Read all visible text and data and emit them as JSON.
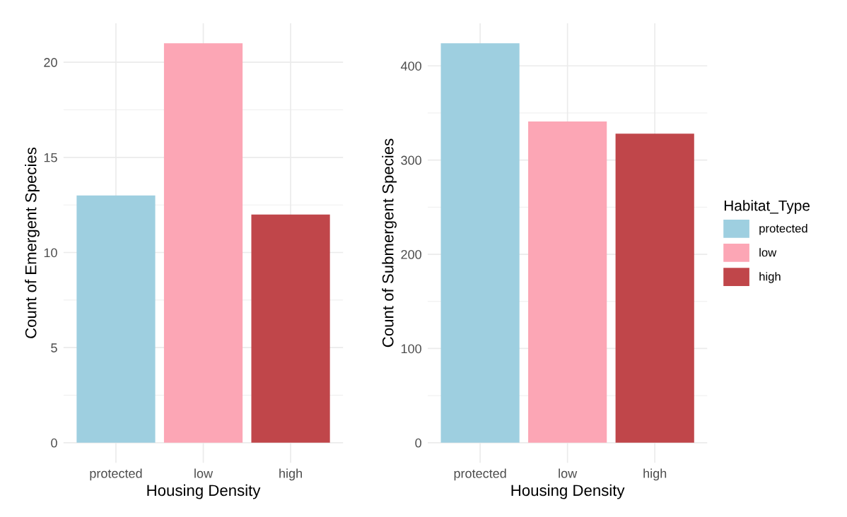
{
  "chart_data": [
    {
      "type": "bar",
      "xlabel": "Housing Density",
      "ylabel": "Count of Emergent Species",
      "categories": [
        "protected",
        "low",
        "high"
      ],
      "series": [
        {
          "color": "#9ecfe0",
          "values": [
            13,
            null,
            null
          ]
        },
        {
          "color": "#fca6b5",
          "values": [
            null,
            21,
            null
          ]
        },
        {
          "color": "#c0464a",
          "values": [
            null,
            null,
            12
          ]
        }
      ],
      "ylim": [
        -1.05,
        22.05
      ],
      "yticks": [
        0,
        5,
        10,
        15,
        20
      ],
      "grid": true
    },
    {
      "type": "bar",
      "xlabel": "Housing Density",
      "ylabel": "Count of Submergent Species",
      "categories": [
        "protected",
        "low",
        "high"
      ],
      "series": [
        {
          "name": "protected",
          "color": "#9ecfe0",
          "values": [
            424,
            null,
            null
          ]
        },
        {
          "name": "low",
          "color": "#fca6b5",
          "values": [
            null,
            341,
            null
          ]
        },
        {
          "name": "high",
          "color": "#c0464a",
          "values": [
            null,
            null,
            328
          ]
        }
      ],
      "ylim": [
        -21.2,
        445.2
      ],
      "yticks": [
        0,
        100,
        200,
        300,
        400
      ],
      "grid": true,
      "legend": "right",
      "legend_title": "Habitat_Type"
    }
  ]
}
